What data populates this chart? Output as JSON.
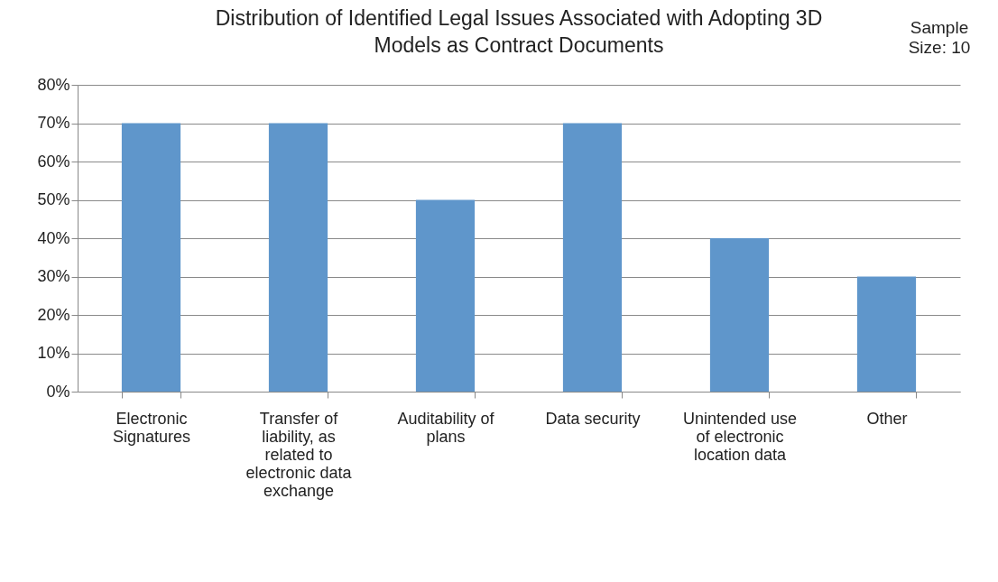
{
  "chart_data": {
    "type": "bar",
    "title": "Distribution of  Identified Legal Issues Associated with Adopting 3D Models as Contract Documents",
    "annotations": [
      "Sample Size: 10"
    ],
    "categories": [
      "Electronic Signatures",
      "Transfer of liability, as related to electronic data exchange",
      "Auditability of plans",
      "Data security",
      "Unintended use of electronic location data",
      "Other"
    ],
    "values": [
      70,
      70,
      50,
      70,
      40,
      30
    ],
    "color": "#5f96cb",
    "ylim": [
      0,
      80
    ],
    "yticks": [
      {
        "value": 0,
        "label": "0%"
      },
      {
        "value": 10,
        "label": "10%"
      },
      {
        "value": 20,
        "label": "20%"
      },
      {
        "value": 30,
        "label": "30%"
      },
      {
        "value": 40,
        "label": "40%"
      },
      {
        "value": 50,
        "label": "50%"
      },
      {
        "value": 60,
        "label": "60%"
      },
      {
        "value": 70,
        "label": "70%"
      },
      {
        "value": 80,
        "label": "80%"
      }
    ],
    "grid": "y"
  }
}
